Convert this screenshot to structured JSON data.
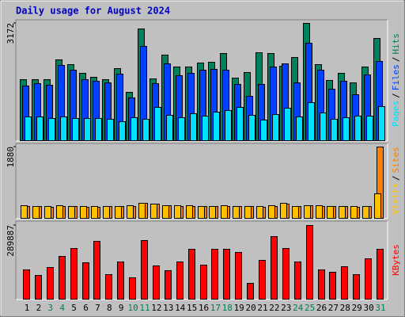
{
  "chart_data": [
    {
      "type": "bar",
      "title": "Daily usage for August 2024",
      "legend_separator": "/",
      "ylim": [
        0,
        3172
      ],
      "yticks": [
        3172
      ],
      "series": [
        {
          "name": "Hits",
          "color": "#00805c",
          "values": [
            1650,
            1650,
            1650,
            2180,
            2050,
            1820,
            1710,
            1650,
            1950,
            1300,
            3020,
            1670,
            2310,
            1990,
            1990,
            2100,
            2120,
            2350,
            1690,
            1840,
            2370,
            2350,
            2010,
            2250,
            3172,
            2050,
            1630,
            1820,
            1560,
            1990,
            2770
          ]
        },
        {
          "name": "Files",
          "color": "#0040ff",
          "values": [
            1480,
            1540,
            1500,
            2030,
            1910,
            1650,
            1610,
            1560,
            1800,
            1160,
            2550,
            1540,
            2080,
            1760,
            1820,
            1910,
            1930,
            1910,
            1520,
            1200,
            1520,
            1990,
            2080,
            1560,
            2640,
            1910,
            1390,
            1610,
            1240,
            1780,
            2140
          ]
        },
        {
          "name": "Pages",
          "color": "#00e0ff",
          "values": [
            640,
            640,
            600,
            640,
            600,
            600,
            600,
            580,
            510,
            620,
            580,
            900,
            680,
            620,
            730,
            660,
            770,
            810,
            900,
            680,
            560,
            710,
            880,
            640,
            1030,
            750,
            580,
            620,
            660,
            660,
            920
          ]
        }
      ]
    },
    {
      "type": "bar",
      "legend_separator": "/",
      "ylim": [
        0,
        1880
      ],
      "yticks": [
        1880
      ],
      "series": [
        {
          "name": "Sites",
          "color": "#ff8000",
          "values": [
            320,
            310,
            300,
            320,
            310,
            300,
            300,
            310,
            310,
            320,
            390,
            370,
            330,
            320,
            320,
            310,
            310,
            320,
            310,
            310,
            300,
            320,
            380,
            310,
            330,
            320,
            310,
            310,
            300,
            310,
            1880
          ]
        },
        {
          "name": "Visits",
          "color": "#ffc000",
          "values": [
            330,
            320,
            310,
            330,
            320,
            310,
            310,
            320,
            320,
            330,
            400,
            380,
            340,
            330,
            330,
            320,
            320,
            330,
            320,
            320,
            310,
            330,
            390,
            320,
            340,
            330,
            320,
            320,
            310,
            320,
            650
          ]
        }
      ]
    },
    {
      "type": "bar",
      "legend_separator": "/",
      "ylim": [
        0,
        289887
      ],
      "yticks": [
        289887
      ],
      "categories": [
        "1",
        "2",
        "3",
        "4",
        "5",
        "6",
        "7",
        "8",
        "9",
        "10",
        "11",
        "12",
        "13",
        "14",
        "15",
        "16",
        "17",
        "18",
        "19",
        "20",
        "21",
        "22",
        "23",
        "24",
        "25",
        "26",
        "27",
        "28",
        "29",
        "30",
        "31"
      ],
      "category_colors": [
        "#000000",
        "#000000",
        "#00805c",
        "#00805c",
        "#000000",
        "#000000",
        "#000000",
        "#000000",
        "#000000",
        "#00805c",
        "#00805c",
        "#000000",
        "#000000",
        "#000000",
        "#000000",
        "#000000",
        "#00805c",
        "#00805c",
        "#000000",
        "#000000",
        "#000000",
        "#000000",
        "#000000",
        "#00805c",
        "#00805c",
        "#000000",
        "#000000",
        "#000000",
        "#000000",
        "#000000",
        "#00805c"
      ],
      "series": [
        {
          "name": "KBytes",
          "color": "#ff0000",
          "values": [
            115300,
            93500,
            124700,
            168300,
            199500,
            143400,
            227500,
            96600,
            146500,
            84200,
            230700,
            130900,
            112200,
            146500,
            196400,
            134000,
            196400,
            196400,
            183900,
            62300,
            152700,
            246200,
            199500,
            146500,
            289887,
            115300,
            106000,
            127800,
            96600,
            159000,
            196400
          ]
        }
      ]
    }
  ]
}
